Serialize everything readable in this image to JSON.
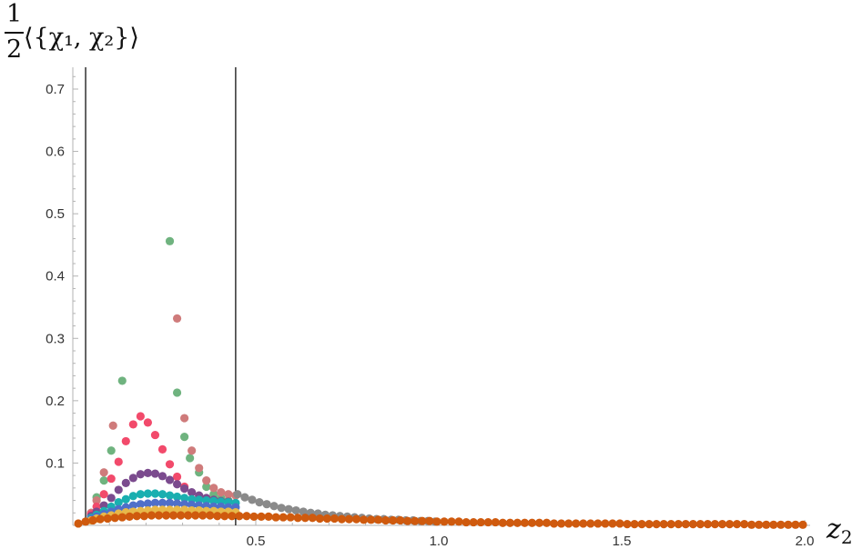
{
  "chart_data": {
    "type": "scatter",
    "title": "",
    "ylabel": {
      "fraction_numerator": "1",
      "fraction_denominator": "2",
      "expression": "⟨{χ₁, χ₂}⟩"
    },
    "xlabel": {
      "symbol": "z",
      "subscript": "2"
    },
    "xlim": [
      0,
      2.0
    ],
    "ylim": [
      0,
      0.735
    ],
    "x_ticks": [
      {
        "value": 0.5,
        "label": "0.5"
      },
      {
        "value": 1.0,
        "label": "1.0"
      },
      {
        "value": 1.5,
        "label": "1.5"
      },
      {
        "value": 2.0,
        "label": "2.0"
      }
    ],
    "y_ticks": [
      {
        "value": 0.1,
        "label": "0.1"
      },
      {
        "value": 0.2,
        "label": "0.2"
      },
      {
        "value": 0.3,
        "label": "0.3"
      },
      {
        "value": 0.4,
        "label": "0.4"
      },
      {
        "value": 0.5,
        "label": "0.5"
      },
      {
        "value": 0.6,
        "label": "0.6"
      },
      {
        "value": 0.7,
        "label": "0.7"
      }
    ],
    "vertical_lines": [
      0.035,
      0.445
    ],
    "grid": false,
    "legend": "none",
    "series": [
      {
        "color": "#6fb37f",
        "points": [
          [
            0.05,
            0.02
          ],
          [
            0.065,
            0.045
          ],
          [
            0.085,
            0.072
          ],
          [
            0.105,
            0.12
          ],
          [
            0.135,
            0.232
          ],
          [
            0.265,
            0.456
          ],
          [
            0.285,
            0.213
          ],
          [
            0.305,
            0.142
          ],
          [
            0.32,
            0.108
          ],
          [
            0.345,
            0.085
          ],
          [
            0.365,
            0.062
          ],
          [
            0.385,
            0.05
          ],
          [
            0.405,
            0.044
          ],
          [
            0.425,
            0.04
          ]
        ]
      },
      {
        "color": "#cf7b7b",
        "points": [
          [
            0.05,
            0.02
          ],
          [
            0.065,
            0.04
          ],
          [
            0.085,
            0.085
          ],
          [
            0.11,
            0.16
          ],
          [
            0.285,
            0.332
          ],
          [
            0.305,
            0.172
          ],
          [
            0.325,
            0.12
          ],
          [
            0.345,
            0.092
          ],
          [
            0.365,
            0.072
          ],
          [
            0.385,
            0.06
          ],
          [
            0.405,
            0.053
          ],
          [
            0.425,
            0.05
          ],
          [
            0.445,
            0.048
          ]
        ]
      },
      {
        "color": "#f24a6b",
        "points": [
          [
            0.05,
            0.018
          ],
          [
            0.065,
            0.03
          ],
          [
            0.085,
            0.05
          ],
          [
            0.105,
            0.075
          ],
          [
            0.125,
            0.102
          ],
          [
            0.145,
            0.135
          ],
          [
            0.165,
            0.162
          ],
          [
            0.185,
            0.175
          ],
          [
            0.205,
            0.165
          ],
          [
            0.225,
            0.145
          ],
          [
            0.245,
            0.122
          ],
          [
            0.265,
            0.098
          ],
          [
            0.285,
            0.078
          ],
          [
            0.305,
            0.062
          ]
        ]
      },
      {
        "color": "#7b4b8e",
        "points": [
          [
            0.05,
            0.015
          ],
          [
            0.065,
            0.022
          ],
          [
            0.085,
            0.032
          ],
          [
            0.105,
            0.044
          ],
          [
            0.125,
            0.057
          ],
          [
            0.145,
            0.068
          ],
          [
            0.165,
            0.076
          ],
          [
            0.185,
            0.082
          ],
          [
            0.205,
            0.084
          ],
          [
            0.225,
            0.083
          ],
          [
            0.245,
            0.079
          ],
          [
            0.265,
            0.073
          ],
          [
            0.285,
            0.066
          ],
          [
            0.305,
            0.059
          ],
          [
            0.325,
            0.053
          ],
          [
            0.345,
            0.048
          ],
          [
            0.365,
            0.044
          ],
          [
            0.385,
            0.041
          ],
          [
            0.405,
            0.039
          ],
          [
            0.425,
            0.038
          ]
        ]
      },
      {
        "color": "#1aafb0",
        "points": [
          [
            0.05,
            0.012
          ],
          [
            0.065,
            0.017
          ],
          [
            0.085,
            0.023
          ],
          [
            0.105,
            0.03
          ],
          [
            0.125,
            0.037
          ],
          [
            0.145,
            0.042
          ],
          [
            0.165,
            0.047
          ],
          [
            0.185,
            0.05
          ],
          [
            0.205,
            0.051
          ],
          [
            0.225,
            0.051
          ],
          [
            0.245,
            0.05
          ],
          [
            0.265,
            0.048
          ],
          [
            0.285,
            0.046
          ],
          [
            0.305,
            0.044
          ],
          [
            0.325,
            0.042
          ],
          [
            0.345,
            0.041
          ],
          [
            0.365,
            0.04
          ],
          [
            0.385,
            0.039
          ],
          [
            0.405,
            0.038
          ],
          [
            0.425,
            0.037
          ],
          [
            0.445,
            0.036
          ]
        ]
      },
      {
        "color": "#4f6fc9",
        "points": [
          [
            0.05,
            0.01
          ],
          [
            0.065,
            0.014
          ],
          [
            0.085,
            0.018
          ],
          [
            0.105,
            0.022
          ],
          [
            0.125,
            0.026
          ],
          [
            0.145,
            0.029
          ],
          [
            0.165,
            0.032
          ],
          [
            0.185,
            0.034
          ],
          [
            0.205,
            0.035
          ],
          [
            0.225,
            0.036
          ],
          [
            0.245,
            0.036
          ],
          [
            0.265,
            0.036
          ],
          [
            0.285,
            0.035
          ],
          [
            0.305,
            0.034
          ],
          [
            0.325,
            0.033
          ],
          [
            0.345,
            0.032
          ],
          [
            0.365,
            0.031
          ],
          [
            0.385,
            0.03
          ],
          [
            0.405,
            0.03
          ],
          [
            0.425,
            0.029
          ],
          [
            0.445,
            0.029
          ]
        ]
      },
      {
        "color": "#e7b84a",
        "points": [
          [
            0.05,
            0.008
          ],
          [
            0.065,
            0.011
          ],
          [
            0.085,
            0.014
          ],
          [
            0.105,
            0.016
          ],
          [
            0.125,
            0.019
          ],
          [
            0.145,
            0.021
          ],
          [
            0.165,
            0.022
          ],
          [
            0.185,
            0.023
          ],
          [
            0.205,
            0.024
          ],
          [
            0.225,
            0.025
          ],
          [
            0.245,
            0.025
          ],
          [
            0.265,
            0.025
          ],
          [
            0.285,
            0.025
          ],
          [
            0.305,
            0.025
          ],
          [
            0.325,
            0.024
          ],
          [
            0.345,
            0.024
          ],
          [
            0.365,
            0.023
          ],
          [
            0.385,
            0.023
          ],
          [
            0.405,
            0.022
          ],
          [
            0.425,
            0.022
          ],
          [
            0.445,
            0.021
          ]
        ]
      },
      {
        "color": "#8a8a8a",
        "points": [
          [
            0.45,
            0.05
          ],
          [
            0.47,
            0.045
          ],
          [
            0.49,
            0.041
          ],
          [
            0.51,
            0.037
          ],
          [
            0.53,
            0.034
          ],
          [
            0.55,
            0.031
          ],
          [
            0.57,
            0.028
          ],
          [
            0.59,
            0.026
          ],
          [
            0.61,
            0.024
          ],
          [
            0.63,
            0.022
          ],
          [
            0.65,
            0.02
          ],
          [
            0.67,
            0.019
          ],
          [
            0.69,
            0.017
          ],
          [
            0.71,
            0.016
          ],
          [
            0.73,
            0.015
          ],
          [
            0.75,
            0.014
          ],
          [
            0.77,
            0.013
          ],
          [
            0.79,
            0.012
          ],
          [
            0.81,
            0.011
          ],
          [
            0.83,
            0.01
          ],
          [
            0.85,
            0.01
          ],
          [
            0.87,
            0.009
          ],
          [
            0.89,
            0.009
          ],
          [
            0.91,
            0.008
          ],
          [
            0.93,
            0.008
          ],
          [
            0.95,
            0.007
          ],
          [
            0.97,
            0.007
          ],
          [
            0.99,
            0.006
          ]
        ]
      },
      {
        "color": "#cf5a0e",
        "points": [
          [
            0.015,
            0.003
          ],
          [
            0.035,
            0.006
          ],
          [
            0.055,
            0.008
          ],
          [
            0.075,
            0.01
          ],
          [
            0.095,
            0.011
          ],
          [
            0.115,
            0.012
          ],
          [
            0.135,
            0.013
          ],
          [
            0.155,
            0.014
          ],
          [
            0.175,
            0.015
          ],
          [
            0.195,
            0.015
          ],
          [
            0.215,
            0.016
          ],
          [
            0.235,
            0.016
          ],
          [
            0.255,
            0.016
          ],
          [
            0.275,
            0.016
          ],
          [
            0.295,
            0.016
          ],
          [
            0.315,
            0.016
          ],
          [
            0.335,
            0.016
          ],
          [
            0.355,
            0.016
          ],
          [
            0.375,
            0.016
          ],
          [
            0.395,
            0.015
          ],
          [
            0.415,
            0.015
          ],
          [
            0.435,
            0.015
          ],
          [
            0.455,
            0.015
          ],
          [
            0.475,
            0.015
          ],
          [
            0.495,
            0.014
          ],
          [
            0.515,
            0.014
          ],
          [
            0.535,
            0.014
          ],
          [
            0.555,
            0.013
          ],
          [
            0.575,
            0.013
          ],
          [
            0.595,
            0.013
          ],
          [
            0.615,
            0.012
          ],
          [
            0.635,
            0.012
          ],
          [
            0.655,
            0.012
          ],
          [
            0.675,
            0.011
          ],
          [
            0.695,
            0.011
          ],
          [
            0.715,
            0.011
          ],
          [
            0.735,
            0.01
          ],
          [
            0.755,
            0.01
          ],
          [
            0.775,
            0.01
          ],
          [
            0.795,
            0.009
          ],
          [
            0.815,
            0.009
          ],
          [
            0.835,
            0.009
          ],
          [
            0.855,
            0.008
          ],
          [
            0.875,
            0.008
          ],
          [
            0.895,
            0.008
          ],
          [
            0.915,
            0.007
          ],
          [
            0.935,
            0.007
          ],
          [
            0.955,
            0.007
          ],
          [
            0.975,
            0.007
          ],
          [
            0.995,
            0.006
          ],
          [
            1.015,
            0.006
          ],
          [
            1.035,
            0.006
          ],
          [
            1.055,
            0.006
          ],
          [
            1.075,
            0.005
          ],
          [
            1.095,
            0.005
          ],
          [
            1.115,
            0.005
          ],
          [
            1.135,
            0.005
          ],
          [
            1.155,
            0.005
          ],
          [
            1.175,
            0.004
          ],
          [
            1.195,
            0.004
          ],
          [
            1.215,
            0.004
          ],
          [
            1.235,
            0.004
          ],
          [
            1.255,
            0.004
          ],
          [
            1.275,
            0.004
          ],
          [
            1.295,
            0.004
          ],
          [
            1.315,
            0.003
          ],
          [
            1.335,
            0.003
          ],
          [
            1.355,
            0.003
          ],
          [
            1.375,
            0.003
          ],
          [
            1.395,
            0.003
          ],
          [
            1.415,
            0.003
          ],
          [
            1.435,
            0.003
          ],
          [
            1.455,
            0.003
          ],
          [
            1.475,
            0.003
          ],
          [
            1.495,
            0.003
          ],
          [
            1.515,
            0.002
          ],
          [
            1.535,
            0.002
          ],
          [
            1.555,
            0.002
          ],
          [
            1.575,
            0.002
          ],
          [
            1.595,
            0.002
          ],
          [
            1.615,
            0.002
          ],
          [
            1.635,
            0.002
          ],
          [
            1.655,
            0.002
          ],
          [
            1.675,
            0.002
          ],
          [
            1.695,
            0.002
          ],
          [
            1.715,
            0.002
          ],
          [
            1.735,
            0.002
          ],
          [
            1.755,
            0.002
          ],
          [
            1.775,
            0.002
          ],
          [
            1.795,
            0.002
          ],
          [
            1.815,
            0.002
          ],
          [
            1.835,
            0.002
          ],
          [
            1.855,
            0.001
          ],
          [
            1.875,
            0.001
          ],
          [
            1.895,
            0.001
          ],
          [
            1.915,
            0.001
          ],
          [
            1.935,
            0.001
          ],
          [
            1.955,
            0.001
          ],
          [
            1.975,
            0.001
          ],
          [
            1.995,
            0.001
          ]
        ]
      }
    ]
  }
}
